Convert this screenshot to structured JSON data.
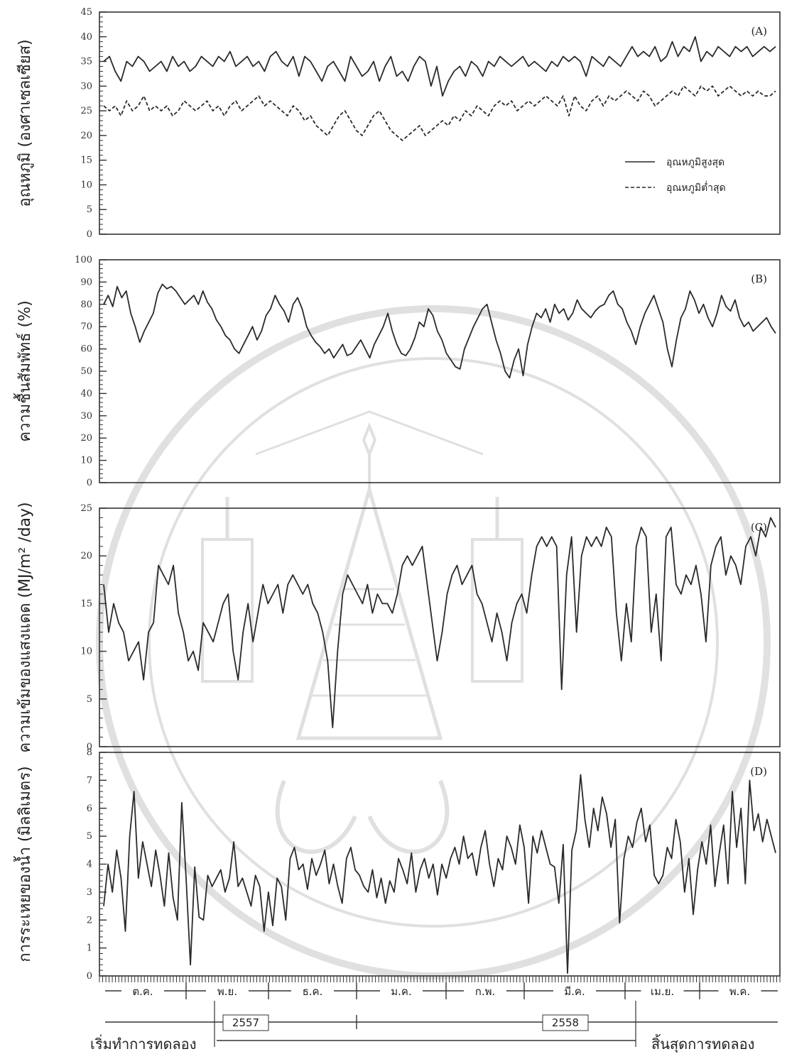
{
  "chart_data": [
    {
      "id": "A",
      "type": "line",
      "panel_label": "(A)",
      "ylabel": "อุณหภูมิ (องศาเซลเซียส)",
      "ylim": [
        0,
        45
      ],
      "yticks": [
        0,
        5,
        10,
        15,
        20,
        25,
        30,
        35,
        40,
        45
      ],
      "legend": {
        "placement": "right"
      },
      "series": [
        {
          "name": "อุณหภูมิสูงสุด",
          "style": "solid",
          "values": [
            35,
            36,
            33,
            31,
            35,
            34,
            36,
            35,
            33,
            34,
            35,
            33,
            36,
            34,
            35,
            33,
            34,
            36,
            35,
            34,
            36,
            35,
            37,
            34,
            35,
            36,
            34,
            35,
            33,
            36,
            37,
            35,
            34,
            36,
            32,
            36,
            35,
            33,
            31,
            34,
            35,
            33,
            31,
            36,
            34,
            32,
            33,
            35,
            31,
            34,
            36,
            32,
            33,
            31,
            34,
            36,
            35,
            30,
            34,
            28,
            31,
            33,
            34,
            32,
            35,
            34,
            32,
            35,
            34,
            36,
            35,
            34,
            35,
            36,
            34,
            35,
            34,
            33,
            35,
            34,
            36,
            35,
            36,
            35,
            32,
            36,
            35,
            34,
            36,
            35,
            34,
            36,
            38,
            36,
            37,
            36,
            38,
            35,
            36,
            39,
            36,
            38,
            37,
            40,
            35,
            37,
            36,
            38,
            37,
            36,
            38,
            37,
            38,
            36,
            37,
            38,
            37,
            38
          ]
        },
        {
          "name": "อุณหภูมิต่ำสุด",
          "style": "dashed",
          "values": [
            26,
            25,
            26,
            24,
            27,
            25,
            26,
            28,
            25,
            26,
            25,
            26,
            24,
            25,
            27,
            26,
            25,
            26,
            27,
            25,
            26,
            24,
            26,
            27,
            25,
            26,
            27,
            28,
            26,
            27,
            26,
            25,
            24,
            26,
            25,
            23,
            24,
            22,
            21,
            20,
            22,
            24,
            25,
            23,
            21,
            20,
            22,
            24,
            25,
            23,
            21,
            20,
            19,
            20,
            21,
            22,
            20,
            21,
            22,
            23,
            22,
            24,
            23,
            25,
            24,
            26,
            25,
            24,
            26,
            27,
            26,
            27,
            25,
            26,
            27,
            26,
            27,
            28,
            27,
            26,
            28,
            24,
            28,
            26,
            25,
            27,
            28,
            26,
            28,
            27,
            28,
            29,
            28,
            27,
            29,
            28,
            26,
            27,
            28,
            29,
            28,
            30,
            29,
            28,
            30,
            29,
            30,
            28,
            29,
            30,
            29,
            28,
            29,
            28,
            29,
            28,
            28,
            29
          ]
        }
      ]
    },
    {
      "id": "B",
      "type": "line",
      "panel_label": "(B)",
      "ylabel": "ความชื้นสัมพัทธ์ (%)",
      "ylim": [
        0,
        100
      ],
      "yticks": [
        0,
        10,
        20,
        30,
        40,
        50,
        60,
        70,
        80,
        90,
        100
      ],
      "series": [
        {
          "name": "",
          "style": "solid",
          "values": [
            80,
            84,
            79,
            88,
            83,
            86,
            76,
            70,
            63,
            68,
            72,
            76,
            85,
            89,
            87,
            88,
            86,
            83,
            80,
            82,
            84,
            80,
            86,
            81,
            78,
            73,
            70,
            66,
            64,
            60,
            58,
            62,
            66,
            70,
            64,
            68,
            75,
            78,
            84,
            80,
            77,
            72,
            80,
            83,
            78,
            70,
            66,
            63,
            61,
            58,
            60,
            56,
            59,
            62,
            57,
            58,
            61,
            64,
            60,
            56,
            62,
            66,
            70,
            76,
            68,
            62,
            58,
            57,
            60,
            65,
            72,
            70,
            78,
            75,
            68,
            64,
            58,
            55,
            52,
            51,
            60,
            65,
            70,
            74,
            78,
            80,
            72,
            64,
            58,
            50,
            47,
            55,
            60,
            48,
            62,
            70,
            76,
            74,
            78,
            72,
            80,
            76,
            78,
            73,
            76,
            82,
            78,
            76,
            74,
            77,
            79,
            80,
            84,
            86,
            80,
            78,
            72,
            68,
            62,
            70,
            76,
            80,
            84,
            78,
            72,
            60,
            52,
            64,
            74,
            78,
            86,
            82,
            76,
            80,
            74,
            70,
            76,
            84,
            79,
            77,
            82,
            74,
            70,
            72,
            68,
            70,
            72,
            74,
            70,
            67
          ]
        }
      ]
    },
    {
      "id": "C",
      "type": "line",
      "panel_label": "(C)",
      "ylabel": "ความเข้มของแสงแดด (MJ/m² /day)",
      "ylim": [
        0,
        25
      ],
      "yticks": [
        0,
        5,
        10,
        15,
        20,
        25
      ],
      "series": [
        {
          "name": "",
          "style": "solid",
          "values": [
            17,
            12,
            15,
            13,
            12,
            9,
            10,
            11,
            7,
            12,
            13,
            19,
            18,
            17,
            19,
            14,
            12,
            9,
            10,
            8,
            13,
            12,
            11,
            13,
            15,
            16,
            10,
            7,
            12,
            15,
            11,
            14,
            17,
            15,
            16,
            17,
            14,
            17,
            18,
            17,
            16,
            17,
            15,
            14,
            12,
            9,
            2,
            10,
            16,
            18,
            17,
            16,
            15,
            17,
            14,
            16,
            15,
            15,
            14,
            16,
            19,
            20,
            19,
            20,
            21,
            17,
            13,
            9,
            12,
            16,
            18,
            19,
            17,
            18,
            19,
            16,
            15,
            13,
            11,
            14,
            12,
            9,
            13,
            15,
            16,
            14,
            18,
            21,
            22,
            21,
            22,
            21,
            6,
            18,
            22,
            12,
            20,
            22,
            21,
            22,
            21,
            23,
            22,
            14,
            9,
            15,
            11,
            21,
            23,
            22,
            12,
            16,
            9,
            22,
            23,
            17,
            16,
            18,
            17,
            19,
            16,
            11,
            19,
            21,
            22,
            18,
            20,
            19,
            17,
            21,
            22,
            20,
            23,
            22,
            24,
            23
          ]
        }
      ]
    },
    {
      "id": "D",
      "type": "line",
      "panel_label": "(D)",
      "ylabel": "การระเหยของน้ำ (มิลลิเมตร)",
      "ylim": [
        0,
        8
      ],
      "yticks": [
        0,
        1,
        2,
        3,
        4,
        5,
        6,
        7,
        8
      ],
      "series": [
        {
          "name": "",
          "style": "solid",
          "values": [
            2.5,
            4.0,
            3.0,
            4.5,
            3.5,
            1.6,
            5.0,
            6.6,
            3.5,
            4.8,
            4.0,
            3.2,
            4.5,
            3.6,
            2.5,
            4.4,
            2.8,
            2.0,
            6.2,
            3.5,
            0.4,
            3.9,
            2.1,
            2.0,
            3.6,
            3.2,
            3.5,
            3.8,
            3.0,
            3.5,
            4.8,
            3.2,
            3.5,
            3.0,
            2.5,
            3.6,
            3.2,
            1.6,
            3.0,
            1.8,
            3.5,
            3.2,
            2.0,
            4.2,
            4.6,
            3.8,
            4.0,
            3.1,
            4.2,
            3.6,
            4.0,
            4.5,
            3.3,
            4.0,
            3.2,
            2.6,
            4.2,
            4.6,
            3.8,
            3.6,
            3.2,
            3.0,
            3.8,
            2.8,
            3.5,
            2.6,
            3.4,
            3.0,
            4.2,
            3.8,
            3.3,
            4.4,
            3.0,
            3.8,
            4.2,
            3.5,
            4.0,
            2.9,
            4.0,
            3.5,
            4.2,
            4.6,
            4.0,
            5.0,
            4.2,
            4.4,
            3.6,
            4.6,
            5.2,
            4.0,
            3.2,
            4.2,
            3.8,
            5.0,
            4.6,
            4.0,
            5.4,
            4.6,
            2.6,
            5.0,
            4.4,
            5.2,
            4.6,
            4.0,
            3.9,
            2.6,
            4.7,
            0.1,
            4.5,
            5.2,
            7.2,
            5.6,
            4.6,
            6.0,
            5.2,
            6.4,
            5.8,
            4.6,
            5.6,
            1.9,
            4.2,
            5.0,
            4.6,
            5.5,
            6.0,
            4.8,
            5.4,
            3.6,
            3.3,
            3.6,
            4.6,
            4.2,
            5.6,
            4.8,
            3.0,
            4.2,
            2.2,
            3.8,
            4.8,
            4.0,
            5.4,
            3.2,
            4.4,
            5.4,
            3.3,
            6.6,
            4.6,
            6.0,
            3.3,
            7.0,
            5.2,
            5.8,
            4.8,
            5.6,
            5.0,
            4.4
          ]
        }
      ]
    }
  ],
  "x_axis": {
    "months": [
      "ต.ค.",
      "พ.ย.",
      "ธ.ค.",
      "ม.ค.",
      "ก.พ.",
      "มี.ค.",
      "เม.ย.",
      "พ.ค."
    ],
    "years": [
      "2557",
      "2558"
    ],
    "start_label": "เริ่มทำการทดลอง",
    "end_label": "สิ้นสุดการทดลอง"
  },
  "colors": {
    "line": "#2a2a2a",
    "watermark": "#c8c8c8"
  }
}
